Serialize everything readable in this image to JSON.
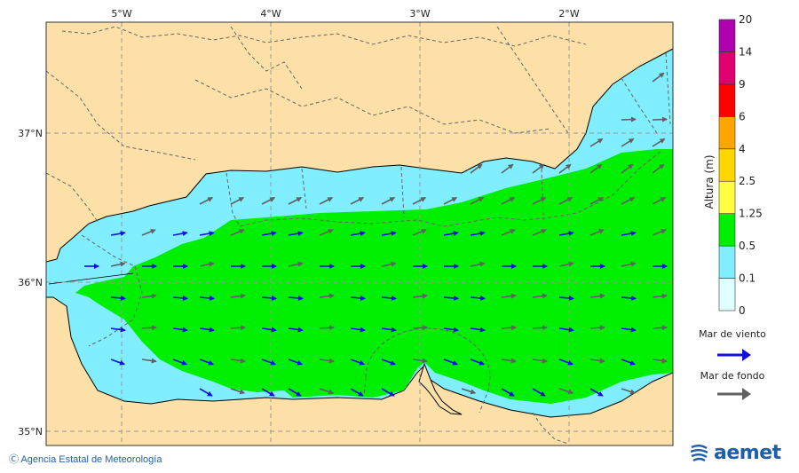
{
  "map": {
    "lon_labels": [
      "5°W",
      "4°W",
      "3°W",
      "2°W"
    ],
    "lat_labels": [
      "37°N",
      "36°N",
      "35°N"
    ]
  },
  "legend": {
    "title": "Altura (m)",
    "levels": [
      "0",
      "0.1",
      "0.5",
      "1.25",
      "2.5",
      "4",
      "6",
      "9",
      "14",
      "20"
    ],
    "colors": [
      "#e0ffff",
      "#80eeff",
      "#00ee00",
      "#ffff40",
      "#ffd700",
      "#ffa500",
      "#ff0000",
      "#e00070",
      "#b000b0"
    ],
    "wind_sea_label": "Mar de viento",
    "wind_sea_color": "#1010e0",
    "swell_label": "Mar de fondo",
    "swell_color": "#606060"
  },
  "footer": {
    "copyright": "Ⓒ Agencia Estatal de Meteorología",
    "logo_text": "aemet"
  },
  "colors": {
    "land": "#fde0a8",
    "border": "#666666",
    "grid": "#999999"
  }
}
